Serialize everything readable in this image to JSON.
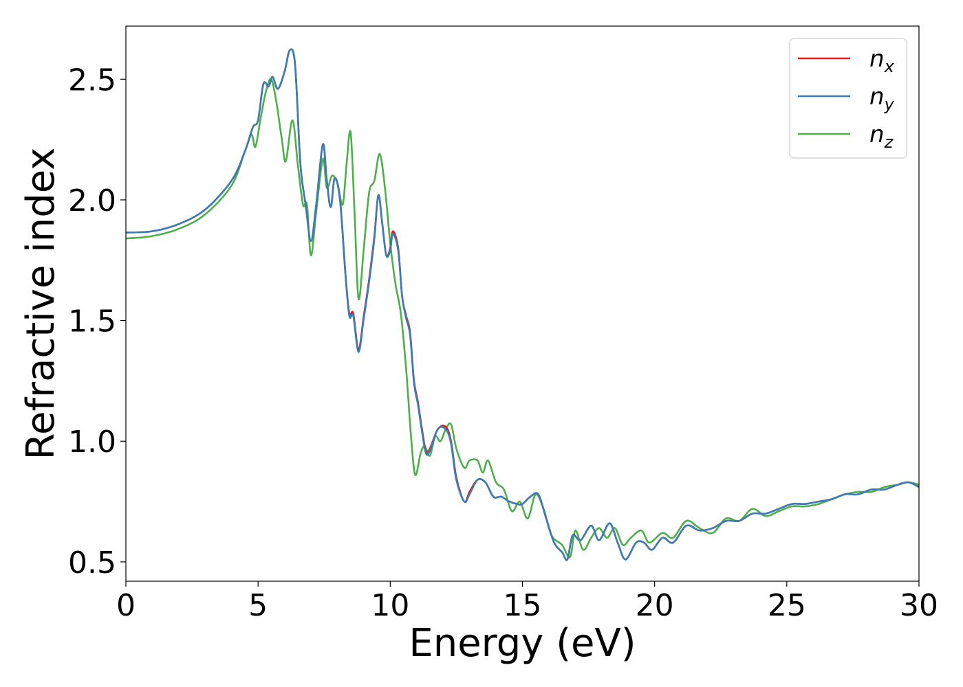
{
  "chart_data": {
    "type": "line",
    "title": "",
    "xlabel": "Energy (eV)",
    "ylabel": "Refractive index",
    "xlim": [
      0,
      30
    ],
    "ylim": [
      0.42,
      2.72
    ],
    "x_ticks": [
      0,
      5,
      10,
      15,
      20,
      25,
      30
    ],
    "x_tick_labels": [
      "0",
      "5",
      "10",
      "15",
      "20",
      "25",
      "30"
    ],
    "y_ticks": [
      0.5,
      1.0,
      1.5,
      2.0,
      2.5
    ],
    "y_tick_labels": [
      "0.5",
      "1.0",
      "1.5",
      "2.0",
      "2.5"
    ],
    "grid": false,
    "legend_position": "top-right",
    "series": [
      {
        "name": "n_x",
        "label_main": "n",
        "label_sub": "x",
        "color": "#e41a1c",
        "points": [
          [
            0,
            1.865
          ],
          [
            1,
            1.87
          ],
          [
            2,
            1.9
          ],
          [
            3,
            1.96
          ],
          [
            4,
            2.08
          ],
          [
            4.5,
            2.2
          ],
          [
            4.8,
            2.3
          ],
          [
            5.0,
            2.33
          ],
          [
            5.2,
            2.48
          ],
          [
            5.4,
            2.47
          ],
          [
            5.55,
            2.51
          ],
          [
            5.75,
            2.46
          ],
          [
            6.0,
            2.53
          ],
          [
            6.2,
            2.62
          ],
          [
            6.4,
            2.56
          ],
          [
            6.6,
            2.15
          ],
          [
            6.8,
            1.98
          ],
          [
            7.0,
            1.83
          ],
          [
            7.2,
            1.98
          ],
          [
            7.45,
            2.23
          ],
          [
            7.6,
            2.08
          ],
          [
            7.75,
            1.97
          ],
          [
            7.9,
            2.09
          ],
          [
            8.1,
            2.0
          ],
          [
            8.3,
            1.7
          ],
          [
            8.45,
            1.53
          ],
          [
            8.6,
            1.53
          ],
          [
            8.8,
            1.38
          ],
          [
            9.0,
            1.52
          ],
          [
            9.2,
            1.67
          ],
          [
            9.4,
            1.85
          ],
          [
            9.55,
            2.02
          ],
          [
            9.7,
            1.9
          ],
          [
            9.85,
            1.77
          ],
          [
            10.0,
            1.8
          ],
          [
            10.1,
            1.87
          ],
          [
            10.3,
            1.8
          ],
          [
            10.45,
            1.6
          ],
          [
            10.6,
            1.52
          ],
          [
            10.75,
            1.45
          ],
          [
            10.9,
            1.25
          ],
          [
            11.05,
            1.16
          ],
          [
            11.2,
            1.05
          ],
          [
            11.35,
            0.96
          ],
          [
            11.5,
            0.97
          ],
          [
            11.8,
            1.05
          ],
          [
            12.1,
            1.06
          ],
          [
            12.3,
            1.0
          ],
          [
            12.5,
            0.85
          ],
          [
            12.8,
            0.75
          ],
          [
            13.0,
            0.79
          ],
          [
            13.3,
            0.84
          ],
          [
            13.6,
            0.83
          ],
          [
            13.9,
            0.77
          ],
          [
            14.2,
            0.77
          ],
          [
            14.5,
            0.75
          ],
          [
            14.8,
            0.74
          ],
          [
            15.0,
            0.74
          ],
          [
            15.3,
            0.77
          ],
          [
            15.6,
            0.78
          ],
          [
            15.9,
            0.68
          ],
          [
            16.2,
            0.58
          ],
          [
            16.5,
            0.54
          ],
          [
            16.7,
            0.51
          ],
          [
            16.9,
            0.61
          ],
          [
            17.2,
            0.59
          ],
          [
            17.6,
            0.65
          ],
          [
            17.9,
            0.59
          ],
          [
            18.3,
            0.66
          ],
          [
            18.6,
            0.58
          ],
          [
            18.9,
            0.51
          ],
          [
            19.3,
            0.58
          ],
          [
            19.6,
            0.58
          ],
          [
            19.9,
            0.55
          ],
          [
            20.3,
            0.6
          ],
          [
            20.7,
            0.58
          ],
          [
            21.2,
            0.65
          ],
          [
            21.7,
            0.63
          ],
          [
            22.2,
            0.64
          ],
          [
            22.7,
            0.67
          ],
          [
            23.2,
            0.67
          ],
          [
            23.7,
            0.7
          ],
          [
            24.2,
            0.7
          ],
          [
            24.7,
            0.72
          ],
          [
            25.2,
            0.74
          ],
          [
            25.7,
            0.74
          ],
          [
            26.2,
            0.75
          ],
          [
            26.7,
            0.76
          ],
          [
            27.2,
            0.78
          ],
          [
            27.7,
            0.78
          ],
          [
            28.2,
            0.8
          ],
          [
            28.7,
            0.8
          ],
          [
            29.2,
            0.82
          ],
          [
            29.6,
            0.83
          ],
          [
            30,
            0.81
          ]
        ]
      },
      {
        "name": "n_y",
        "label_main": "n",
        "label_sub": "y",
        "color": "#377eb8",
        "points": [
          [
            0,
            1.865
          ],
          [
            1,
            1.87
          ],
          [
            2,
            1.9
          ],
          [
            3,
            1.96
          ],
          [
            4,
            2.08
          ],
          [
            4.5,
            2.2
          ],
          [
            4.8,
            2.3
          ],
          [
            5.0,
            2.33
          ],
          [
            5.2,
            2.48
          ],
          [
            5.4,
            2.47
          ],
          [
            5.55,
            2.51
          ],
          [
            5.75,
            2.46
          ],
          [
            6.0,
            2.53
          ],
          [
            6.2,
            2.62
          ],
          [
            6.4,
            2.56
          ],
          [
            6.6,
            2.15
          ],
          [
            6.8,
            1.98
          ],
          [
            7.0,
            1.83
          ],
          [
            7.2,
            1.98
          ],
          [
            7.45,
            2.23
          ],
          [
            7.6,
            2.08
          ],
          [
            7.75,
            1.97
          ],
          [
            7.9,
            2.09
          ],
          [
            8.1,
            2.0
          ],
          [
            8.3,
            1.7
          ],
          [
            8.45,
            1.52
          ],
          [
            8.6,
            1.52
          ],
          [
            8.8,
            1.37
          ],
          [
            9.0,
            1.51
          ],
          [
            9.2,
            1.66
          ],
          [
            9.4,
            1.84
          ],
          [
            9.55,
            2.02
          ],
          [
            9.7,
            1.9
          ],
          [
            9.85,
            1.77
          ],
          [
            10.0,
            1.79
          ],
          [
            10.1,
            1.86
          ],
          [
            10.3,
            1.79
          ],
          [
            10.45,
            1.6
          ],
          [
            10.6,
            1.51
          ],
          [
            10.75,
            1.44
          ],
          [
            10.9,
            1.24
          ],
          [
            11.05,
            1.15
          ],
          [
            11.2,
            1.04
          ],
          [
            11.35,
            0.95
          ],
          [
            11.5,
            0.96
          ],
          [
            11.8,
            1.05
          ],
          [
            12.1,
            1.05
          ],
          [
            12.3,
            0.99
          ],
          [
            12.5,
            0.84
          ],
          [
            12.8,
            0.75
          ],
          [
            13.0,
            0.78
          ],
          [
            13.3,
            0.84
          ],
          [
            13.6,
            0.83
          ],
          [
            13.9,
            0.77
          ],
          [
            14.2,
            0.77
          ],
          [
            14.5,
            0.75
          ],
          [
            14.8,
            0.74
          ],
          [
            15.0,
            0.74
          ],
          [
            15.3,
            0.77
          ],
          [
            15.6,
            0.78
          ],
          [
            15.9,
            0.68
          ],
          [
            16.2,
            0.58
          ],
          [
            16.5,
            0.54
          ],
          [
            16.7,
            0.51
          ],
          [
            16.9,
            0.61
          ],
          [
            17.2,
            0.59
          ],
          [
            17.6,
            0.65
          ],
          [
            17.9,
            0.59
          ],
          [
            18.3,
            0.66
          ],
          [
            18.6,
            0.58
          ],
          [
            18.9,
            0.51
          ],
          [
            19.3,
            0.58
          ],
          [
            19.6,
            0.58
          ],
          [
            19.9,
            0.55
          ],
          [
            20.3,
            0.6
          ],
          [
            20.7,
            0.58
          ],
          [
            21.2,
            0.65
          ],
          [
            21.7,
            0.63
          ],
          [
            22.2,
            0.64
          ],
          [
            22.7,
            0.67
          ],
          [
            23.2,
            0.67
          ],
          [
            23.7,
            0.7
          ],
          [
            24.2,
            0.7
          ],
          [
            24.7,
            0.72
          ],
          [
            25.2,
            0.74
          ],
          [
            25.7,
            0.74
          ],
          [
            26.2,
            0.75
          ],
          [
            26.7,
            0.76
          ],
          [
            27.2,
            0.78
          ],
          [
            27.7,
            0.78
          ],
          [
            28.2,
            0.8
          ],
          [
            28.7,
            0.8
          ],
          [
            29.2,
            0.82
          ],
          [
            29.6,
            0.83
          ],
          [
            30,
            0.81
          ]
        ]
      },
      {
        "name": "n_z",
        "label_main": "n",
        "label_sub": "z",
        "color": "#4daf4a",
        "points": [
          [
            0,
            1.84
          ],
          [
            1,
            1.85
          ],
          [
            2,
            1.88
          ],
          [
            3,
            1.94
          ],
          [
            4,
            2.06
          ],
          [
            4.5,
            2.2
          ],
          [
            4.75,
            2.27
          ],
          [
            4.9,
            2.22
          ],
          [
            5.1,
            2.34
          ],
          [
            5.3,
            2.45
          ],
          [
            5.5,
            2.5
          ],
          [
            5.7,
            2.4
          ],
          [
            5.9,
            2.25
          ],
          [
            6.05,
            2.16
          ],
          [
            6.3,
            2.33
          ],
          [
            6.5,
            2.15
          ],
          [
            6.7,
            1.98
          ],
          [
            6.85,
            1.98
          ],
          [
            7.0,
            1.77
          ],
          [
            7.2,
            1.95
          ],
          [
            7.45,
            2.17
          ],
          [
            7.6,
            2.05
          ],
          [
            7.8,
            2.1
          ],
          [
            8.0,
            2.07
          ],
          [
            8.2,
            1.98
          ],
          [
            8.35,
            2.15
          ],
          [
            8.5,
            2.28
          ],
          [
            8.65,
            1.95
          ],
          [
            8.8,
            1.59
          ],
          [
            9.0,
            1.8
          ],
          [
            9.2,
            2.03
          ],
          [
            9.4,
            2.08
          ],
          [
            9.6,
            2.19
          ],
          [
            9.8,
            2.05
          ],
          [
            10.0,
            1.82
          ],
          [
            10.2,
            1.65
          ],
          [
            10.4,
            1.53
          ],
          [
            10.6,
            1.3
          ],
          [
            10.8,
            1.0
          ],
          [
            10.95,
            0.86
          ],
          [
            11.15,
            0.95
          ],
          [
            11.3,
            0.98
          ],
          [
            11.5,
            0.94
          ],
          [
            11.7,
            1.02
          ],
          [
            11.9,
            1.0
          ],
          [
            12.1,
            1.05
          ],
          [
            12.3,
            1.07
          ],
          [
            12.5,
            0.97
          ],
          [
            12.8,
            0.89
          ],
          [
            13.0,
            0.92
          ],
          [
            13.3,
            0.92
          ],
          [
            13.5,
            0.87
          ],
          [
            13.7,
            0.92
          ],
          [
            14.0,
            0.83
          ],
          [
            14.3,
            0.8
          ],
          [
            14.6,
            0.71
          ],
          [
            14.9,
            0.75
          ],
          [
            15.2,
            0.68
          ],
          [
            15.5,
            0.78
          ],
          [
            15.8,
            0.72
          ],
          [
            16.1,
            0.61
          ],
          [
            16.5,
            0.57
          ],
          [
            16.8,
            0.52
          ],
          [
            17.0,
            0.63
          ],
          [
            17.3,
            0.55
          ],
          [
            17.6,
            0.6
          ],
          [
            17.9,
            0.64
          ],
          [
            18.2,
            0.6
          ],
          [
            18.5,
            0.64
          ],
          [
            18.8,
            0.57
          ],
          [
            19.1,
            0.6
          ],
          [
            19.5,
            0.63
          ],
          [
            19.8,
            0.58
          ],
          [
            20.3,
            0.62
          ],
          [
            20.7,
            0.6
          ],
          [
            21.2,
            0.67
          ],
          [
            21.7,
            0.64
          ],
          [
            22.2,
            0.62
          ],
          [
            22.7,
            0.68
          ],
          [
            23.2,
            0.67
          ],
          [
            23.7,
            0.72
          ],
          [
            24.2,
            0.69
          ],
          [
            24.7,
            0.71
          ],
          [
            25.2,
            0.73
          ],
          [
            25.7,
            0.73
          ],
          [
            26.2,
            0.74
          ],
          [
            26.7,
            0.76
          ],
          [
            27.2,
            0.78
          ],
          [
            27.7,
            0.79
          ],
          [
            28.2,
            0.79
          ],
          [
            28.7,
            0.81
          ],
          [
            29.2,
            0.82
          ],
          [
            29.6,
            0.83
          ],
          [
            30,
            0.82
          ]
        ]
      }
    ]
  }
}
